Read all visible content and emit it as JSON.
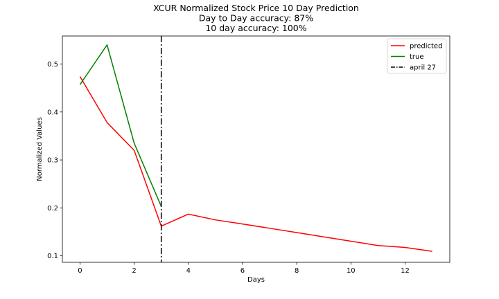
{
  "chart_data": {
    "type": "line",
    "title": [
      "XCUR Normalized Stock Price 10 Day Prediction",
      "Day to Day accuracy: 87%",
      "10 day accuracy: 100%"
    ],
    "xlabel": "Days",
    "ylabel": "Normalized Values",
    "xlim": [
      -0.65,
      13.65
    ],
    "ylim": [
      0.0865,
      0.5585
    ],
    "xticks": [
      0,
      2,
      4,
      6,
      8,
      10,
      12
    ],
    "yticks": [
      0.1,
      0.2,
      0.3,
      0.4,
      0.5
    ],
    "ytick_labels": [
      "0.1",
      "0.2",
      "0.3",
      "0.4",
      "0.5"
    ],
    "grid": false,
    "legend_position": "top-right",
    "series": [
      {
        "name": "predicted",
        "color": "#ff0000",
        "style": "solid",
        "x": [
          0,
          1,
          2,
          3,
          4,
          5,
          6,
          7,
          8,
          9,
          10,
          11,
          12,
          13
        ],
        "values": [
          0.474,
          0.378,
          0.32,
          0.162,
          0.187,
          0.175,
          0.1665,
          0.1575,
          0.1485,
          0.1395,
          0.1305,
          0.1215,
          0.1175,
          0.1095
        ]
      },
      {
        "name": "true",
        "color": "#008000",
        "style": "solid",
        "x": [
          0,
          1,
          2,
          3
        ],
        "values": [
          0.457,
          0.54,
          0.335,
          0.203
        ]
      }
    ],
    "vlines": [
      {
        "name": "april 27",
        "x": 3,
        "color": "#000000",
        "style": "dashdot"
      }
    ]
  }
}
